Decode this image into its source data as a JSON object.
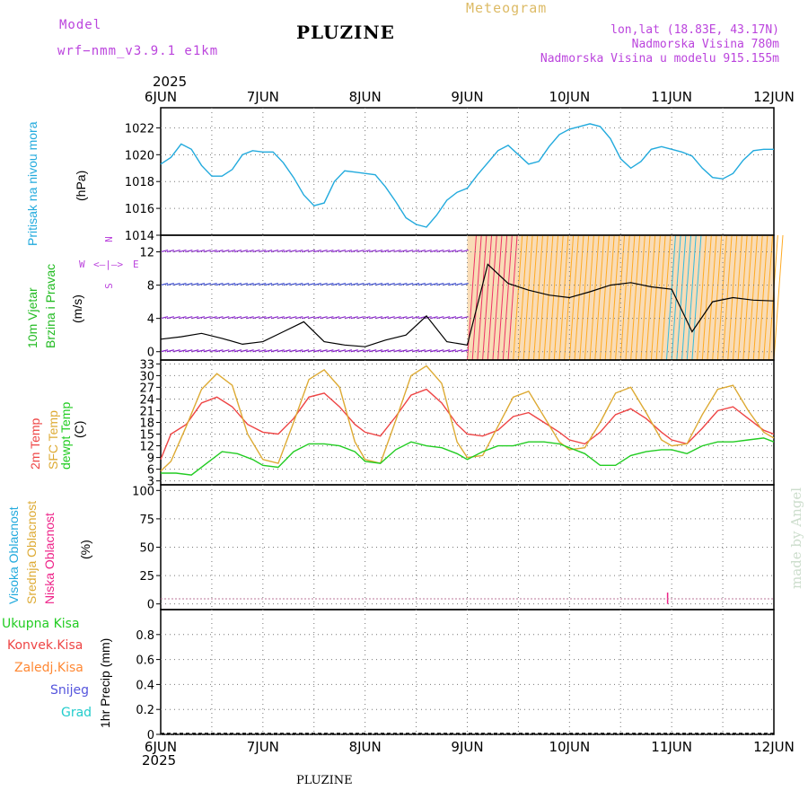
{
  "header": {
    "model_label": "Model",
    "model_name": "wrf−nmm_v3.9.1  e1km",
    "title": "PLUZINE",
    "meteogram": "Meteogram",
    "coords": "lon,lat (18.83E, 43.17N)",
    "elevation": "Nadmorska Visina 780m",
    "model_elevation": "Nadmorska Visina u modelu 915.155m"
  },
  "footer": {
    "station": "PLUZINE",
    "credit": "made by Angel"
  },
  "colors": {
    "pressure": "#22aadd",
    "temp2m": "#ee4444",
    "sfc": "#ddaa33",
    "dewpt": "#22cc22",
    "high_cloud": "#22aadd",
    "mid_cloud": "#ddaa33",
    "low_cloud": "#ee2288",
    "precip_total": "#22cc22",
    "precip_conv": "#ee4444",
    "precip_frz": "#ff8833",
    "snow": "#5555dd",
    "hail": "#22cccc",
    "wind_label": "#22bb22",
    "windrose": "#bb44dd"
  },
  "x_axis": {
    "top_year": "2025",
    "bottom_year": "2025",
    "ticks": [
      "6JUN",
      "7JUN",
      "8JUN",
      "9JUN",
      "10JUN",
      "11JUN",
      "12JUN"
    ]
  },
  "panels": {
    "pressure": {
      "label": "Pritisak na nivou mora",
      "unit": "(hPa)"
    },
    "wind": {
      "label1": "10m Vjetar",
      "label2": "Brzina i Pravac",
      "unit": "(m/s)",
      "rose": {
        "n": "N",
        "w": "W",
        "e": "E",
        "s": "S"
      }
    },
    "temp": {
      "label1": "2m Temp",
      "label2": "SFC Temp",
      "label3": "dewpt Temp",
      "unit": "(C)"
    },
    "cloud": {
      "label1": "Visoka Oblacnost",
      "label2": "Srednja Oblacnost",
      "label3": "Niska Oblacnost",
      "unit": "(%)"
    },
    "precip": {
      "unit_label": "1hr Precip (mm)",
      "legend": [
        "Ukupna Kisa",
        "Konvek.Kisa",
        "Zaledj.Kisa",
        "Snijeg",
        "Grad"
      ]
    }
  },
  "chart_data": [
    {
      "type": "line",
      "title": "",
      "ylabel": "Pritisak na nivou mora (hPa)",
      "ylim": [
        1014,
        1023.5
      ],
      "yticks": [
        1014,
        1016,
        1018,
        1020,
        1022
      ],
      "x_unit": "days since 6JUN 00UTC",
      "grid": true,
      "series": [
        {
          "name": "Pritisak",
          "x": [
            0,
            0.1,
            0.2,
            0.3,
            0.4,
            0.5,
            0.6,
            0.7,
            0.8,
            0.9,
            1.0,
            1.1,
            1.2,
            1.3,
            1.4,
            1.5,
            1.6,
            1.7,
            1.8,
            1.9,
            2.0,
            2.1,
            2.2,
            2.3,
            2.4,
            2.5,
            2.6,
            2.7,
            2.8,
            2.9,
            3.0,
            3.1,
            3.2,
            3.3,
            3.4,
            3.5,
            3.6,
            3.7,
            3.8,
            3.9,
            4.0,
            4.1,
            4.2,
            4.3,
            4.4,
            4.5,
            4.6,
            4.7,
            4.8,
            4.9,
            5.0,
            5.1,
            5.2,
            5.3,
            5.4,
            5.5,
            5.6,
            5.7,
            5.8,
            5.9,
            6.0
          ],
          "values": [
            1019.3,
            1019.8,
            1020.8,
            1020.4,
            1019.2,
            1018.4,
            1018.4,
            1018.9,
            1020.0,
            1020.3,
            1020.2,
            1020.2,
            1019.4,
            1018.3,
            1017.0,
            1016.2,
            1016.4,
            1018.0,
            1018.8,
            1018.7,
            1018.6,
            1018.5,
            1017.6,
            1016.5,
            1015.3,
            1014.8,
            1014.6,
            1015.5,
            1016.6,
            1017.2,
            1017.5,
            1018.5,
            1019.4,
            1020.3,
            1020.7,
            1020.0,
            1019.3,
            1019.5,
            1020.6,
            1021.5,
            1021.9,
            1022.1,
            1022.3,
            1022.1,
            1021.2,
            1019.7,
            1019.0,
            1019.5,
            1020.4,
            1020.6,
            1020.4,
            1020.2,
            1019.9,
            1019.0,
            1018.3,
            1018.2,
            1018.6,
            1019.6,
            1020.3,
            1020.4,
            1020.4
          ]
        }
      ]
    },
    {
      "type": "line",
      "title": "",
      "ylabel": "10m Vjetar Brzina i Pravac (m/s)",
      "ylim": [
        -1,
        14
      ],
      "yticks": [
        0,
        4,
        8,
        12
      ],
      "grid": true,
      "series": [
        {
          "name": "Brzina",
          "x": [
            0,
            0.2,
            0.4,
            0.6,
            0.8,
            1.0,
            1.2,
            1.4,
            1.6,
            1.8,
            2.0,
            2.2,
            2.4,
            2.6,
            2.8,
            3.0,
            3.2,
            3.4,
            3.6,
            3.8,
            4.0,
            4.2,
            4.4,
            4.6,
            4.8,
            5.0,
            5.2,
            5.4,
            5.6,
            5.8,
            6.0
          ],
          "values": [
            1.5,
            1.8,
            2.2,
            1.6,
            0.9,
            1.2,
            2.4,
            3.6,
            1.2,
            0.8,
            0.6,
            1.4,
            2.0,
            4.3,
            1.2,
            0.8,
            10.5,
            8.2,
            7.4,
            6.8,
            6.5,
            7.2,
            8.0,
            8.3,
            7.8,
            7.5,
            2.4,
            6.0,
            6.5,
            6.2,
            6.1
          ]
        }
      ]
    },
    {
      "type": "line",
      "title": "",
      "ylabel": "2m Temp / SFC Temp / dewpt Temp (C)",
      "ylim": [
        2,
        34
      ],
      "yticks": [
        3,
        6,
        9,
        12,
        15,
        18,
        21,
        24,
        27,
        30,
        33
      ],
      "grid": true,
      "series": [
        {
          "name": "2m Temp",
          "x": [
            0,
            0.1,
            0.25,
            0.4,
            0.55,
            0.7,
            0.85,
            1.0,
            1.15,
            1.3,
            1.45,
            1.6,
            1.75,
            1.9,
            2.0,
            2.15,
            2.3,
            2.45,
            2.6,
            2.75,
            2.9,
            3.0,
            3.15,
            3.3,
            3.45,
            3.6,
            3.75,
            3.9,
            4.0,
            4.15,
            4.3,
            4.45,
            4.6,
            4.75,
            4.9,
            5.0,
            5.15,
            5.3,
            5.45,
            5.6,
            5.75,
            5.9,
            6.0
          ],
          "values": [
            8.5,
            15.0,
            17.5,
            23.0,
            24.5,
            22.0,
            17.5,
            15.5,
            15.0,
            19.0,
            24.5,
            25.5,
            22.0,
            17.5,
            15.5,
            14.5,
            19.5,
            25.0,
            26.5,
            23.0,
            17.5,
            15.0,
            14.5,
            16.0,
            19.5,
            20.5,
            18.0,
            15.5,
            13.5,
            12.5,
            15.5,
            20.0,
            21.5,
            19.0,
            15.5,
            13.5,
            12.5,
            16.5,
            21.0,
            22.0,
            19.0,
            16.0,
            15.0
          ]
        },
        {
          "name": "SFC Temp",
          "x": [
            0,
            0.1,
            0.25,
            0.4,
            0.55,
            0.7,
            0.85,
            1.0,
            1.15,
            1.3,
            1.45,
            1.6,
            1.75,
            1.9,
            2.0,
            2.15,
            2.3,
            2.45,
            2.6,
            2.75,
            2.9,
            3.0,
            3.15,
            3.3,
            3.45,
            3.6,
            3.75,
            3.9,
            4.0,
            4.15,
            4.3,
            4.45,
            4.6,
            4.75,
            4.9,
            5.0,
            5.15,
            5.3,
            5.45,
            5.6,
            5.75,
            5.9,
            6.0
          ],
          "values": [
            5.5,
            8.0,
            17.0,
            26.5,
            30.5,
            27.5,
            15.0,
            8.5,
            7.5,
            18.0,
            29.0,
            31.5,
            27.0,
            13.0,
            8.5,
            7.5,
            18.5,
            30.0,
            32.5,
            28.0,
            13.0,
            9.0,
            9.5,
            17.0,
            24.5,
            26.0,
            19.5,
            13.0,
            11.0,
            11.5,
            18.0,
            25.5,
            27.0,
            20.5,
            13.5,
            12.0,
            12.5,
            20.0,
            26.5,
            27.5,
            21.0,
            15.5,
            14.0
          ]
        },
        {
          "name": "dewpt Temp",
          "x": [
            0,
            0.15,
            0.3,
            0.45,
            0.6,
            0.75,
            0.9,
            1.0,
            1.15,
            1.3,
            1.45,
            1.6,
            1.75,
            1.9,
            2.0,
            2.15,
            2.3,
            2.45,
            2.6,
            2.75,
            2.9,
            3.0,
            3.15,
            3.3,
            3.45,
            3.6,
            3.75,
            3.9,
            4.0,
            4.15,
            4.3,
            4.45,
            4.6,
            4.75,
            4.9,
            5.0,
            5.15,
            5.3,
            5.45,
            5.6,
            5.75,
            5.9,
            6.0
          ],
          "values": [
            5.0,
            5.0,
            4.5,
            7.5,
            10.5,
            10.0,
            8.5,
            7.0,
            6.5,
            10.5,
            12.5,
            12.5,
            12.0,
            10.5,
            8.0,
            7.5,
            11.0,
            13.0,
            12.0,
            11.5,
            10.0,
            8.5,
            10.5,
            12.0,
            12.0,
            13.0,
            13.0,
            12.5,
            11.5,
            10.0,
            7.0,
            7.0,
            9.5,
            10.5,
            11.0,
            11.0,
            10.0,
            12.0,
            13.0,
            13.0,
            13.5,
            14.0,
            13.0
          ]
        }
      ]
    },
    {
      "type": "bar",
      "title": "",
      "ylabel": "Visoka / Srednja / Niska Oblacnost (%)",
      "ylim": [
        -5,
        105
      ],
      "yticks": [
        0,
        25,
        50,
        75,
        100
      ],
      "grid": true,
      "series": [
        {
          "name": "Niska Oblacnost",
          "x": [
            4.96
          ],
          "values": [
            10
          ]
        }
      ]
    },
    {
      "type": "bar",
      "title": "",
      "ylabel": "1hr Precip (mm)",
      "ylim": [
        0,
        1
      ],
      "yticks": [
        0,
        0.2,
        0.4,
        0.6,
        0.8
      ],
      "grid": true,
      "series": [
        {
          "name": "Ukupna Kisa",
          "x": [],
          "values": []
        }
      ]
    }
  ]
}
